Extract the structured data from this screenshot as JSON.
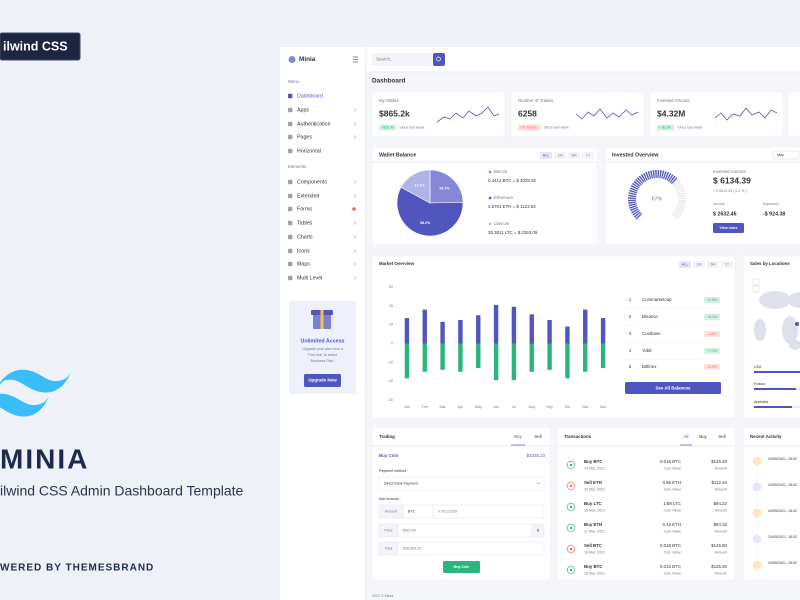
{
  "promo": {
    "badge": "ilwind CSS",
    "title": "MINIA",
    "subtitle": "ilwind CSS Admin Dashboard Template",
    "powered": "WERED BY THEMESBRAND"
  },
  "sidebar": {
    "brand": "Minia",
    "sections": [
      {
        "title": "Menu",
        "items": [
          "Dashboard",
          "Apps",
          "Authentication",
          "Pages",
          "Horizontal"
        ]
      },
      {
        "title": "Elements",
        "items": [
          "Components",
          "Extended",
          "Forms",
          "Tables",
          "Charts",
          "Icons",
          "Maps",
          "Multi Level"
        ]
      }
    ],
    "upgrade": {
      "title": "Unlimited Access",
      "text": [
        "Upgrade your plan from a",
        "Free trial, to select",
        "'Business Plan'."
      ],
      "button": "Upgrade Now"
    }
  },
  "topbar": {
    "search": "Search..."
  },
  "page_title": "Dashboard",
  "stats": [
    {
      "label": "My Wallet",
      "value": "$865.2k",
      "change": "+$20.9k",
      "note": "Since last week"
    },
    {
      "label": "Number of Trades",
      "value": "6258",
      "change": "-29 Trades",
      "note": "Since last week"
    },
    {
      "label": "Invested Amount",
      "value": "$4.32M",
      "change": "+ $2.8k",
      "note": "Since last week"
    }
  ],
  "wallet": {
    "title": "Wallet Balance",
    "tabs": [
      "ALL",
      "1M",
      "6M",
      "1Y"
    ],
    "coins": [
      {
        "name": "Bitcoin",
        "value": "0.4412 BTC = $ 4025.32"
      },
      {
        "name": "Ethereum",
        "value": "4.5701 ETH = $ 1123.64"
      },
      {
        "name": "Litecoin",
        "value": "35.3811 LTC = $ 2263.09"
      }
    ],
    "pie": {
      "values": [
        24.7,
        58.2,
        17.1
      ],
      "value_labels": [
        "24.7%",
        "58.2%",
        "17.1%"
      ],
      "colors": [
        "#8587d8",
        "#5156be",
        "#b1b3e8"
      ]
    }
  },
  "invested": {
    "title": "Invested Overview",
    "select": "May",
    "label": "Invested Amount",
    "amount": "$ 6134.39",
    "change": "+ 0.0012.23 ( 0.2 % )",
    "income_label": "Income",
    "income": "$ 2632.46",
    "expenses_label": "Expenses",
    "expenses": "-$ 924.38",
    "button": "View more",
    "gauge": {
      "value": 67,
      "value_label": "67%"
    }
  },
  "market": {
    "title": "Market Overview",
    "tabs": [
      "ALL",
      "1M",
      "6M",
      "1Y"
    ],
    "chart": {
      "type": "bar",
      "categories": [
        "Jan",
        "Feb",
        "Mar",
        "Apr",
        "May",
        "Jun",
        "Jul",
        "Aug",
        "Sep",
        "Oct",
        "Nov",
        "Dec"
      ],
      "series": [
        {
          "color": "#5156be",
          "values": [
            27,
            36,
            23,
            25,
            30,
            41,
            39,
            31,
            25,
            18,
            36,
            27
          ]
        },
        {
          "color": "#2ab57d",
          "values": [
            -37,
            -30,
            -28,
            -30,
            -26,
            -39,
            -39,
            -30,
            -28,
            -37,
            -30,
            -26
          ]
        }
      ],
      "ylim": [
        -60,
        60
      ],
      "yticks": [
        -60,
        -40,
        -20,
        0,
        20,
        40,
        60
      ]
    },
    "exchanges": [
      {
        "rank": "1",
        "name": "Coinmarketcap",
        "change": "+2.5%"
      },
      {
        "rank": "2",
        "name": "Binance",
        "change": "+8.3%"
      },
      {
        "rank": "3",
        "name": "Coinbase",
        "change": "-3.6%"
      },
      {
        "rank": "4",
        "name": "Yobit",
        "change": "+7.1%"
      },
      {
        "rank": "5",
        "name": "Bitfinex",
        "change": "-0.9%"
      }
    ],
    "button": "See All Balances"
  },
  "sales": {
    "title": "Sales by Locations",
    "locations": [
      "USA",
      "Russia",
      "Australia"
    ]
  },
  "trading": {
    "title": "Trading",
    "tabs": [
      "Buy",
      "Sell"
    ],
    "buy_label": "Buy Coin",
    "balance": "$4335.23",
    "payment_label": "Payment method :",
    "payment": "Direct Bank Payment",
    "amount_heading": "Add Amount :",
    "amount_label": "Amount",
    "currency": "BTC",
    "amount": "0.00121255",
    "price_label": "Price",
    "price": "$58,245",
    "price_addon": "$",
    "total_label": "Total",
    "total": "$36,854.25",
    "button": "Buy Coin"
  },
  "transactions": {
    "title": "Transactions",
    "tabs": [
      "All",
      "Buy",
      "Sell"
    ],
    "rows": [
      {
        "type": "Buy BTC",
        "date": "14 Mar, 2021",
        "coin": "0.016 BTC",
        "coin_label": "Coin Value",
        "amount": "$125.20",
        "amount_label": "Amount"
      },
      {
        "type": "Sell ETH",
        "date": "15 Mar, 2021",
        "coin": "0.56 ETH",
        "coin_label": "Coin Value",
        "amount": "$112.34",
        "amount_label": "Amount"
      },
      {
        "type": "Buy LTC",
        "date": "16 Mar, 2021",
        "coin": "1.88 LTC",
        "coin_label": "Coin Value",
        "amount": "$94.22",
        "amount_label": "Amount"
      },
      {
        "type": "Buy ETH",
        "date": "17 Mar, 2021",
        "coin": "0.42 ETH",
        "coin_label": "Coin Value",
        "amount": "$84.32",
        "amount_label": "Amount"
      },
      {
        "type": "Sell BTC",
        "date": "18 Mar, 2021",
        "coin": "0.018 BTC",
        "coin_label": "Coin Value",
        "amount": "$145.80",
        "amount_label": "Amount"
      },
      {
        "type": "Buy BTC",
        "date": "19 Mar, 2021",
        "coin": "0.016 BTC",
        "coin_label": "Coin Value",
        "amount": "$125.20",
        "amount_label": "Amount"
      }
    ]
  },
  "activity": {
    "title": "Recent Activity",
    "items": [
      "24/05/2021, 18:02",
      "24/05/2021, 18:02",
      "24/05/2021, 18:02",
      "24/05/2021, 18:02",
      "24/05/2021, 18:02"
    ]
  },
  "footer": "2021 © Minia."
}
